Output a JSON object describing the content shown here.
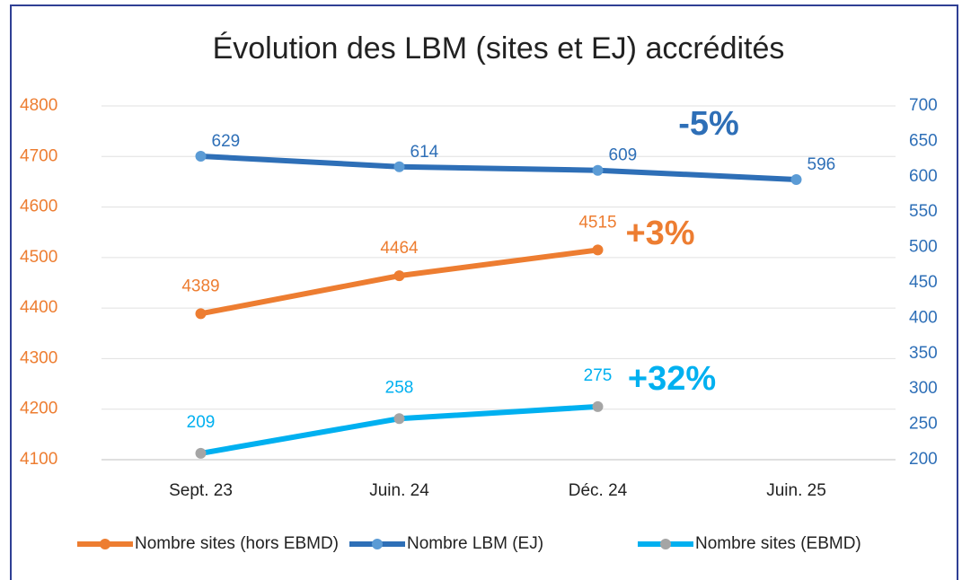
{
  "chart_data": {
    "type": "line",
    "title": "Évolution des LBM  (sites et EJ) accrédités",
    "categories": [
      "Sept. 23",
      "Juin. 24",
      "Déc. 24",
      "Juin. 25"
    ],
    "series": [
      {
        "name": "Nombre sites (hors EBMD)",
        "color": "#ed7d31",
        "marker_color": "#ed7d31",
        "values": [
          4389,
          4464,
          4515,
          null
        ]
      },
      {
        "name": "Nombre LBM (EJ)",
        "color": "#2e6fb7",
        "marker_color": "#5b9bd5",
        "axis": "y2",
        "values": [
          629,
          614,
          609,
          596
        ]
      },
      {
        "name": "Nombre sites (EBMD)",
        "color": "#00b0f0",
        "marker_color": "#a5a5a5",
        "axis": "y2",
        "values": [
          209,
          258,
          275,
          null
        ]
      }
    ],
    "ylim": [
      4100,
      4800
    ],
    "yticks": [
      4100,
      4200,
      4300,
      4400,
      4500,
      4600,
      4700,
      4800
    ],
    "y2lim": [
      200,
      700
    ],
    "y2ticks": [
      200,
      250,
      300,
      350,
      400,
      450,
      500,
      550,
      600,
      650,
      700
    ],
    "grid": true,
    "legend": "bottom",
    "annotations": [
      {
        "text": "-5%",
        "color": "#2e6fb7"
      },
      {
        "text": "+3%",
        "color": "#ed7d31"
      },
      {
        "text": "+32%",
        "color": "#00b0f0"
      }
    ]
  }
}
